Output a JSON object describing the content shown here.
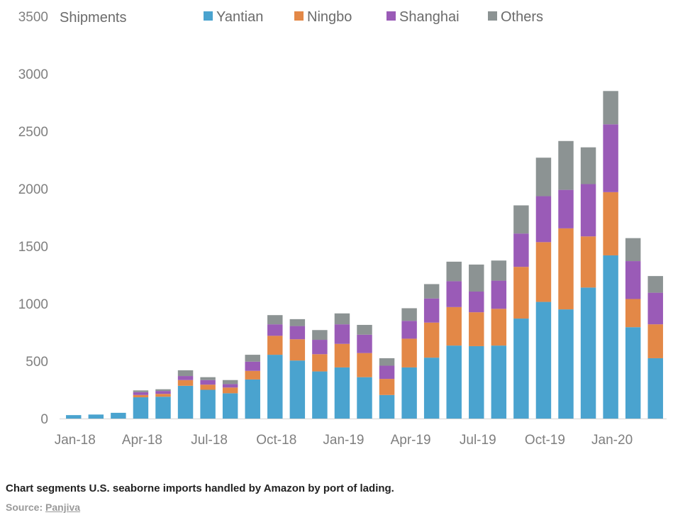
{
  "chart_data": {
    "type": "bar",
    "stacked": true,
    "ylabel": "Shipments",
    "ylim": [
      0,
      3500
    ],
    "yticks": [
      0,
      500,
      1000,
      1500,
      2000,
      2500,
      3000,
      3500
    ],
    "grid": false,
    "legend_position": "top",
    "categories": [
      "Jan-18",
      "Feb-18",
      "Mar-18",
      "Apr-18",
      "May-18",
      "Jun-18",
      "Jul-18",
      "Aug-18",
      "Sep-18",
      "Oct-18",
      "Nov-18",
      "Dec-18",
      "Jan-19",
      "Feb-19",
      "Mar-19",
      "Apr-19",
      "May-19",
      "Jun-19",
      "Jul-19",
      "Aug-19",
      "Sep-19",
      "Oct-19",
      "Nov-19",
      "Dec-19",
      "Jan-20",
      "Feb-20",
      "Mar-20"
    ],
    "xtick_labels": [
      "Jan-18",
      "Apr-18",
      "Jul-18",
      "Oct-18",
      "Jan-19",
      "Apr-19",
      "Jul-19",
      "Oct-19",
      "Jan-20"
    ],
    "series": [
      {
        "name": "Yantian",
        "color": "#4aa3cf",
        "values": [
          30,
          35,
          50,
          185,
          190,
          285,
          250,
          220,
          340,
          555,
          505,
          410,
          445,
          360,
          205,
          445,
          530,
          635,
          630,
          635,
          870,
          1015,
          950,
          1140,
          1420,
          795,
          525
        ]
      },
      {
        "name": "Ningbo",
        "color": "#e38847",
        "values": [
          0,
          0,
          0,
          20,
          25,
          50,
          45,
          50,
          75,
          165,
          185,
          150,
          205,
          210,
          140,
          250,
          305,
          335,
          295,
          320,
          450,
          520,
          705,
          445,
          550,
          245,
          295
        ]
      },
      {
        "name": "Shanghai",
        "color": "#9a5bb7",
        "values": [
          0,
          0,
          0,
          25,
          25,
          35,
          40,
          30,
          80,
          100,
          115,
          125,
          170,
          160,
          115,
          155,
          210,
          225,
          180,
          245,
          290,
          400,
          335,
          455,
          590,
          330,
          275
        ]
      },
      {
        "name": "Others",
        "color": "#8c9393",
        "values": [
          0,
          0,
          0,
          15,
          15,
          50,
          25,
          35,
          60,
          80,
          60,
          85,
          95,
          85,
          65,
          110,
          125,
          170,
          235,
          175,
          245,
          335,
          425,
          320,
          290,
          200,
          145
        ]
      }
    ]
  },
  "caption": "Chart segments U.S. seaborne imports handled by Amazon by port of lading.",
  "source_label": "Source:",
  "source_link": "Panjiva"
}
